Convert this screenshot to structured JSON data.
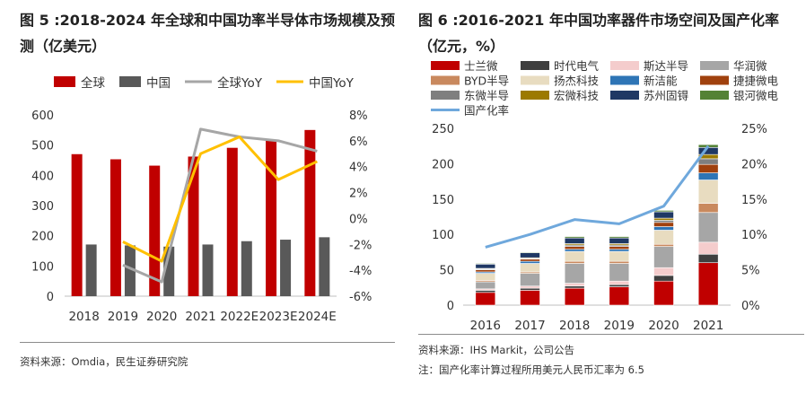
{
  "left": {
    "title": "图 5 :2018-2024 年全球和中国功率半导体市场规模及预测（亿美元）",
    "source": "资料来源：Omdia，民生证券研究院"
  },
  "right": {
    "title": "图 6 :2016-2021 年中国功率器件市场空间及国产化率（亿元，%）",
    "source": "资料来源：IHS Markit，公司公告",
    "note": "注：国产化率计算过程所用美元人民币汇率为 6.5"
  },
  "colors": {
    "global": "#c00000",
    "china": "#595959",
    "global_yoy": "#a6a6a6",
    "china_yoy": "#ffc000",
    "domestic_rate": "#6fa8dc"
  },
  "chart_data": [
    {
      "type": "bar",
      "categories": [
        "2018",
        "2019",
        "2020",
        "2021",
        "2022E",
        "2023E",
        "2024E"
      ],
      "series": [
        {
          "name": "全球",
          "type": "bar",
          "axis": "left",
          "color": "#c00000",
          "values": [
            470,
            453,
            432,
            462,
            491,
            516,
            550
          ]
        },
        {
          "name": "中国",
          "type": "bar",
          "axis": "left",
          "color": "#595959",
          "values": [
            171,
            168,
            164,
            171,
            182,
            187,
            195
          ]
        },
        {
          "name": "全球YoY",
          "type": "line",
          "axis": "right",
          "color": "#a6a6a6",
          "values": [
            null,
            -3.6,
            -4.9,
            6.9,
            6.3,
            6.0,
            5.2
          ]
        },
        {
          "name": "中国YoY",
          "type": "line",
          "axis": "right",
          "color": "#ffc000",
          "values": [
            null,
            -1.8,
            -3.3,
            5.0,
            6.3,
            3.0,
            4.4
          ]
        }
      ],
      "ylim": [
        0,
        600
      ],
      "yticks": [
        "0",
        "100",
        "200",
        "300",
        "400",
        "500",
        "600"
      ],
      "y2lim": [
        -6,
        8
      ],
      "y2ticks": [
        "-6%",
        "-4%",
        "-2%",
        "0%",
        "2%",
        "4%",
        "6%",
        "8%"
      ],
      "legend_position": "top",
      "grid": false
    },
    {
      "type": "bar",
      "stacked": true,
      "categories": [
        "2016",
        "2017",
        "2018",
        "2019",
        "2020",
        "2021"
      ],
      "series": [
        {
          "name": "士兰微",
          "color": "#c00000",
          "values": [
            18,
            21,
            24,
            26,
            34,
            60
          ]
        },
        {
          "name": "时代电气",
          "color": "#3f3f3f",
          "values": [
            3,
            3,
            3,
            3,
            8,
            12
          ]
        },
        {
          "name": "斯达半导",
          "color": "#f4cccc",
          "values": [
            2,
            3,
            4,
            5,
            11,
            17
          ]
        },
        {
          "name": "华润微",
          "color": "#a6a6a6",
          "values": [
            10,
            18,
            28,
            25,
            30,
            42
          ]
        },
        {
          "name": "BYD半导",
          "color": "#c9895e",
          "values": [
            2,
            2,
            3,
            3,
            3,
            13
          ]
        },
        {
          "name": "扬杰科技",
          "color": "#e8dcc0",
          "values": [
            10,
            12,
            14,
            14,
            20,
            33
          ]
        },
        {
          "name": "新洁能",
          "color": "#2e75b6",
          "values": [
            2,
            3,
            3,
            3,
            5,
            10
          ]
        },
        {
          "name": "捷捷微电",
          "color": "#a0410e",
          "values": [
            3,
            3,
            4,
            4,
            6,
            12
          ]
        },
        {
          "name": "东微半导",
          "color": "#7f7f7f",
          "values": [
            1,
            1,
            2,
            2,
            3,
            8
          ]
        },
        {
          "name": "宏微科技",
          "color": "#9c7a00",
          "values": [
            1,
            1,
            2,
            2,
            3,
            6
          ]
        },
        {
          "name": "苏州固锝",
          "color": "#1f3864",
          "values": [
            6,
            7,
            8,
            8,
            9,
            10
          ]
        },
        {
          "name": "银河微电",
          "color": "#548235",
          "values": [
            1,
            1,
            2,
            2,
            2,
            4
          ]
        },
        {
          "name": "国产化率",
          "type": "line",
          "axis": "right",
          "color": "#6fa8dc",
          "values": [
            8.2,
            10.0,
            12.1,
            11.5,
            14.0,
            22.5
          ]
        }
      ],
      "ylim": [
        0,
        250
      ],
      "yticks": [
        "0",
        "50",
        "100",
        "150",
        "200",
        "250"
      ],
      "y2lim": [
        0,
        25
      ],
      "y2ticks": [
        "0%",
        "5%",
        "10%",
        "15%",
        "20%",
        "25%"
      ],
      "legend_position": "top",
      "grid": false
    }
  ]
}
